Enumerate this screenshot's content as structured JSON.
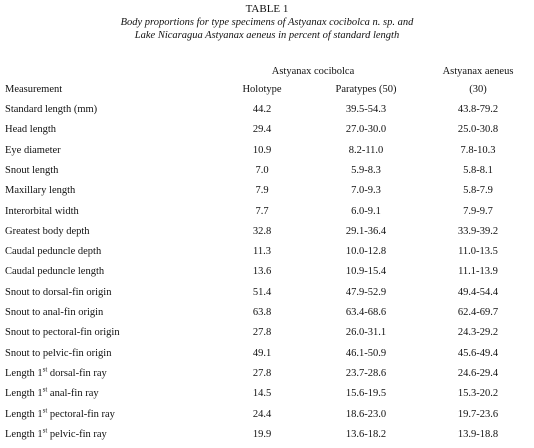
{
  "header": {
    "title": "TABLE 1",
    "caption": [
      "Body proportions for type specimens of Astyanax cocibolca n. sp. and",
      "Lake Nicaragua Astyanax aeneus in percent of standard length"
    ]
  },
  "table": {
    "groups": [
      "Astyanax cocibolca",
      "Astyanax aeneus"
    ],
    "columns": [
      "Measurement",
      "Holotype",
      "Paratypes (50)",
      "(30)"
    ],
    "rows": [
      [
        {
          "pre": "Standard length (mm)"
        },
        "44.2",
        "39.5-54.3",
        "43.8-79.2"
      ],
      [
        {
          "pre": "Head length"
        },
        "29.4",
        "27.0-30.0",
        "25.0-30.8"
      ],
      [
        {
          "pre": "Eye diameter"
        },
        "10.9",
        "8.2-11.0",
        "7.8-10.3"
      ],
      [
        {
          "pre": "Snout length"
        },
        "7.0",
        "5.9-8.3",
        "5.8-8.1"
      ],
      [
        {
          "pre": "Maxillary length"
        },
        "7.9",
        "7.0-9.3",
        "5.8-7.9"
      ],
      [
        {
          "pre": "Interorbital width"
        },
        "7.7",
        "6.0-9.1",
        "7.9-9.7"
      ],
      [
        {
          "pre": "Greatest body depth"
        },
        "32.8",
        "29.1-36.4",
        "33.9-39.2"
      ],
      [
        {
          "pre": "Caudal peduncle depth"
        },
        "11.3",
        "10.0-12.8",
        "11.0-13.5"
      ],
      [
        {
          "pre": "Caudal peduncle length"
        },
        "13.6",
        "10.9-15.4",
        "11.1-13.9"
      ],
      [
        {
          "pre": "Snout to dorsal-fin origin"
        },
        "51.4",
        "47.9-52.9",
        "49.4-54.4"
      ],
      [
        {
          "pre": "Snout to anal-fin origin"
        },
        "63.8",
        "63.4-68.6",
        "62.4-69.7"
      ],
      [
        {
          "pre": "Snout to pectoral-fin origin"
        },
        "27.8",
        "26.0-31.1",
        "24.3-29.2"
      ],
      [
        {
          "pre": "Snout to pelvic-fin origin"
        },
        "49.1",
        "46.1-50.9",
        "45.6-49.4"
      ],
      [
        {
          "pre": "Length 1",
          "sup": "st",
          "post": " dorsal-fin ray"
        },
        "27.8",
        "23.7-28.6",
        "24.6-29.4"
      ],
      [
        {
          "pre": "Length 1",
          "sup": "st",
          "post": " anal-fin ray"
        },
        "14.5",
        "15.6-19.5",
        "15.3-20.2"
      ],
      [
        {
          "pre": "Length 1",
          "sup": "st",
          "post": " pectoral-fin ray"
        },
        "24.4",
        "18.6-23.0",
        "19.7-23.6"
      ],
      [
        {
          "pre": "Length 1",
          "sup": "st",
          "post": " pelvic-fin ray"
        },
        "19.9",
        "13.6-18.2",
        "13.9-18.8"
      ]
    ]
  }
}
